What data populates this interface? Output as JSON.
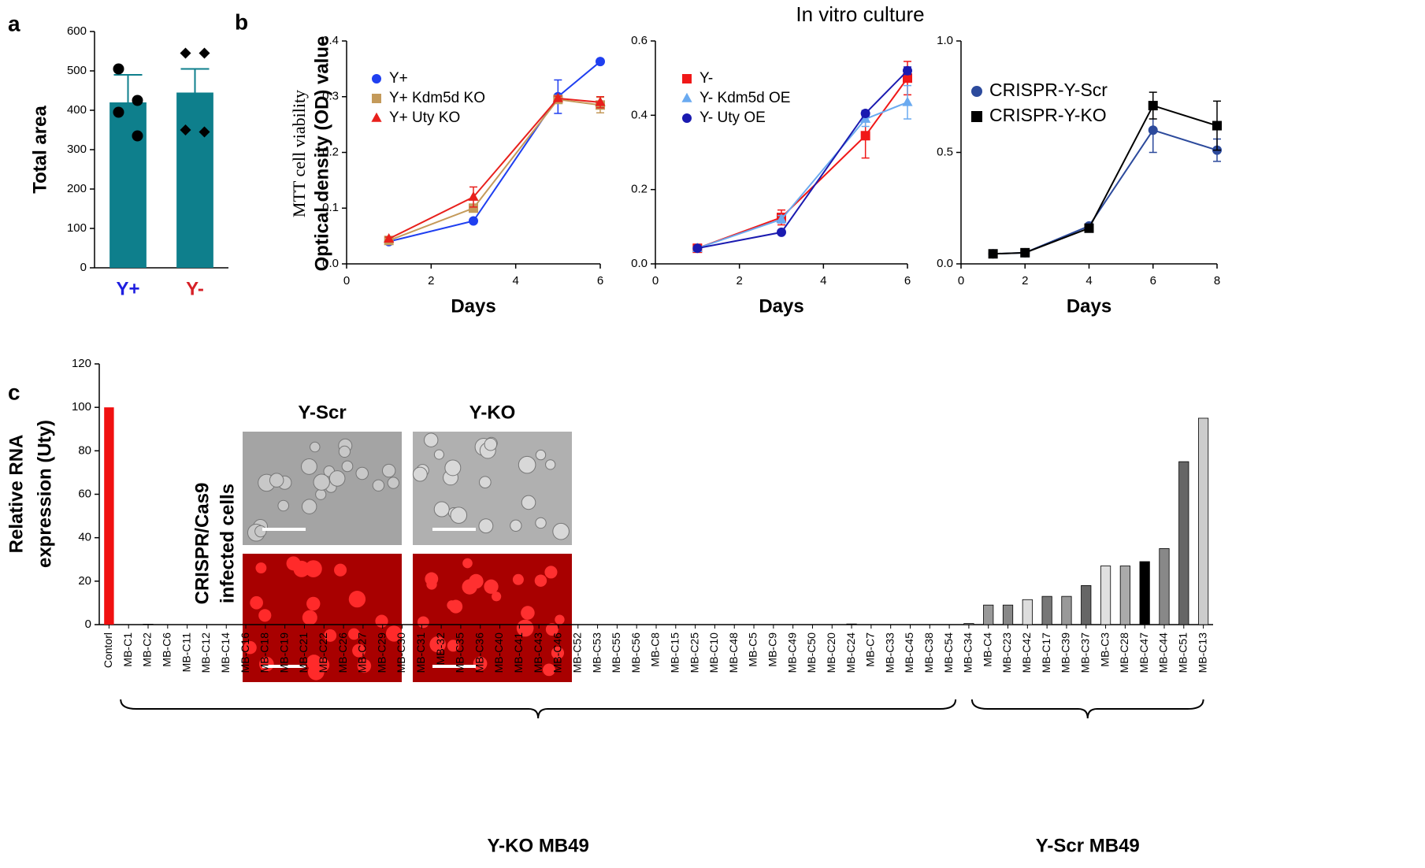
{
  "chart_data": [
    {
      "type": "bar",
      "panel_label": "a",
      "ylabel": "Total area",
      "categories": [
        "Y+",
        "Y-"
      ],
      "category_colors": [
        "#1f1fe0",
        "#d62027"
      ],
      "values": [
        420,
        445
      ],
      "errors": [
        70,
        60
      ],
      "points": [
        [
          505,
          425,
          395,
          335
        ],
        [
          545,
          545,
          350,
          345
        ]
      ],
      "point_markers": [
        "circle",
        "diamond"
      ],
      "color": "#0e7f8c",
      "ylim": [
        0,
        600
      ],
      "yticks": [
        0,
        100,
        200,
        300,
        400,
        500,
        600
      ]
    },
    {
      "type": "line",
      "panel_label": "b",
      "title": "In vitro culture",
      "ylabel": [
        "MTT cell viability",
        "Optical density (OD) value"
      ],
      "xlabel": "Days",
      "x": [
        1,
        3,
        5,
        6
      ],
      "xlim": [
        0,
        6
      ],
      "xticks": [
        0,
        2,
        4,
        6
      ],
      "ylim": [
        0,
        0.4
      ],
      "yticks": [
        {
          "value": 0,
          "label": "0.0"
        },
        0.1,
        0.2,
        0.3,
        0.4
      ],
      "series": [
        {
          "name": "Y+",
          "color": "#1f3ff0",
          "marker": "circle",
          "values": [
            0.04,
            0.077,
            0.3,
            0.363
          ],
          "errors": [
            0.003,
            0.004,
            0.03,
            0.004
          ]
        },
        {
          "name": "Y+ Kdm5d KO",
          "color": "#c49a5a",
          "marker": "square",
          "values": [
            0.042,
            0.1,
            0.295,
            0.285
          ],
          "errors": [
            0.003,
            0.005,
            0.005,
            0.014
          ]
        },
        {
          "name": "Y+ Uty KO",
          "color": "#e8201c",
          "marker": "triangle",
          "values": [
            0.045,
            0.12,
            0.297,
            0.29
          ],
          "errors": [
            0.003,
            0.018,
            0.004,
            0.01
          ]
        }
      ]
    },
    {
      "type": "line",
      "xlabel": "Days",
      "x": [
        1,
        3,
        5,
        6
      ],
      "xlim": [
        0,
        6
      ],
      "xticks": [
        0,
        2,
        4,
        6
      ],
      "ylim": [
        0,
        0.6
      ],
      "yticks": [
        {
          "value": 0,
          "label": "0.0"
        },
        0.2,
        0.4,
        0.6
      ],
      "series": [
        {
          "name": "Y-",
          "color": "#f01818",
          "marker": "square",
          "values": [
            0.042,
            0.125,
            0.345,
            0.5
          ],
          "errors": [
            0.004,
            0.02,
            0.06,
            0.045
          ]
        },
        {
          "name": "Y- Kdm5d OE",
          "color": "#6aaaf0",
          "marker": "triangle",
          "values": [
            0.042,
            0.12,
            0.39,
            0.435
          ],
          "errors": [
            0.003,
            0.01,
            0.02,
            0.045
          ]
        },
        {
          "name": "Y- Uty OE",
          "color": "#1a1ab0",
          "marker": "circle",
          "values": [
            0.042,
            0.085,
            0.405,
            0.52
          ],
          "errors": [
            0.003,
            0.005,
            0.008,
            0.01
          ]
        }
      ]
    },
    {
      "type": "line",
      "xlabel": "Days",
      "x": [
        1,
        2,
        4,
        6,
        8
      ],
      "xlim": [
        0,
        8
      ],
      "xticks": [
        0,
        2,
        4,
        6,
        8
      ],
      "ylim": [
        0,
        1.0
      ],
      "yticks": [
        {
          "value": 0,
          "label": "0.0"
        },
        0.5,
        {
          "value": 1,
          "label": "1.0"
        }
      ],
      "series": [
        {
          "name": "CRISPR-Y-Scr",
          "color": "#2c4a9c",
          "marker": "circle",
          "values": [
            0.045,
            0.05,
            0.17,
            0.6,
            0.51
          ],
          "errors": [
            0.005,
            0.005,
            0.01,
            0.1,
            0.05
          ]
        },
        {
          "name": "CRISPR-Y-KO",
          "color": "#000000",
          "marker": "square",
          "values": [
            0.045,
            0.05,
            0.16,
            0.71,
            0.62
          ],
          "errors": [
            0.005,
            0.005,
            0.01,
            0.06,
            0.11
          ]
        }
      ]
    },
    {
      "type": "bar",
      "panel_label": "c",
      "ylabel": [
        "Relative RNA",
        "expression (Uty)"
      ],
      "categories": [
        "Contorl",
        "MB-C1",
        "MB-C2",
        "MB-C6",
        "MB-C11",
        "MB-C12",
        "MB-C14",
        "MB-C16",
        "MB-C18",
        "MB-C19",
        "MB-C21",
        "MB-C22",
        "MB-C26",
        "MB-C27",
        "MB-C29",
        "MB-C30",
        "MB-C31",
        "MB-32",
        "MB-C35",
        "MB-C36",
        "MB-C40",
        "MB-C41",
        "MB-C43",
        "MB-C46",
        "MB-C52",
        "MB-C53",
        "MB-C55",
        "MB-C56",
        "MB-C8",
        "MB-C15",
        "MB-C25",
        "MB-C10",
        "MB-C48",
        "MB-C5",
        "MB-C9",
        "MB-C49",
        "MB-C50",
        "MB-C20",
        "MB-C24",
        "MB-C7",
        "MB-C33",
        "MB-C45",
        "MB-C38",
        "MB-C54",
        "MB-C34",
        "MB-C4",
        "MB-C23",
        "MB-C42",
        "MB-C17",
        "MB-C39",
        "MB-C37",
        "MB-C3",
        "MB-C28",
        "MB-C47",
        "MB-C44",
        "MB-C51",
        "MB-C13"
      ],
      "values": [
        100,
        0,
        0.2,
        0,
        0,
        0,
        0,
        0,
        0,
        0,
        0,
        0,
        0,
        0,
        0,
        0,
        0,
        0,
        0,
        0,
        0,
        0,
        0,
        0,
        0,
        0,
        0,
        0,
        0,
        0,
        0,
        0,
        0,
        0,
        0,
        0,
        0,
        0,
        0.3,
        0,
        0,
        0,
        0,
        0,
        0.5,
        9,
        9,
        11.5,
        13,
        13,
        18,
        27,
        27,
        29,
        35,
        75,
        95
      ],
      "colors": [
        "#f01010",
        "#888",
        "#888",
        "#888",
        "#888",
        "#888",
        "#888",
        "#888",
        "#888",
        "#888",
        "#888",
        "#888",
        "#888",
        "#888",
        "#888",
        "#888",
        "#888",
        "#888",
        "#888",
        "#888",
        "#888",
        "#888",
        "#888",
        "#888",
        "#888",
        "#888",
        "#888",
        "#888",
        "#888",
        "#888",
        "#888",
        "#888",
        "#888",
        "#888",
        "#888",
        "#888",
        "#888",
        "#888",
        "#888",
        "#888",
        "#888",
        "#888",
        "#888",
        "#888",
        "#888",
        "#999999",
        "#888888",
        "#dddddd",
        "#777777",
        "#999999",
        "#666666",
        "#e0e0e0",
        "#aaaaaa",
        "#000000",
        "#888888",
        "#666666",
        "#cccccc"
      ],
      "ylim": [
        0,
        120
      ],
      "yticks": [
        0,
        20,
        40,
        60,
        80,
        100,
        120
      ],
      "groups": [
        "Y-KO MB49",
        "Y-Scr MB49"
      ],
      "image_labels": [
        "Y-Scr",
        "Y-KO"
      ],
      "image_caption": [
        "CRISPR/Cas9",
        "infected cells"
      ]
    }
  ]
}
